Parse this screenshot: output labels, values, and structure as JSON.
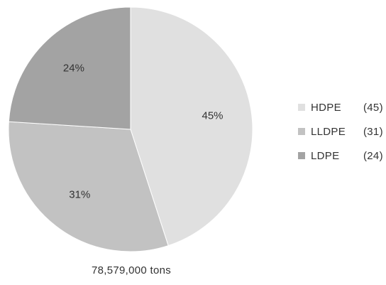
{
  "chart_data": {
    "type": "pie",
    "categories": [
      "HDPE",
      "LLDPE",
      "LDPE"
    ],
    "values": [
      45,
      31,
      24
    ],
    "slice_labels": [
      "45%",
      "31%",
      "24%"
    ],
    "legend_values": [
      "(45)",
      "(31)",
      "(24)"
    ],
    "colors": [
      "#e0e0e0",
      "#c2c2c2",
      "#a3a3a3"
    ],
    "legend_position": "right",
    "start_angle": "top (12 o'clock), clockwise",
    "total_label": "78,579,000 tons"
  }
}
